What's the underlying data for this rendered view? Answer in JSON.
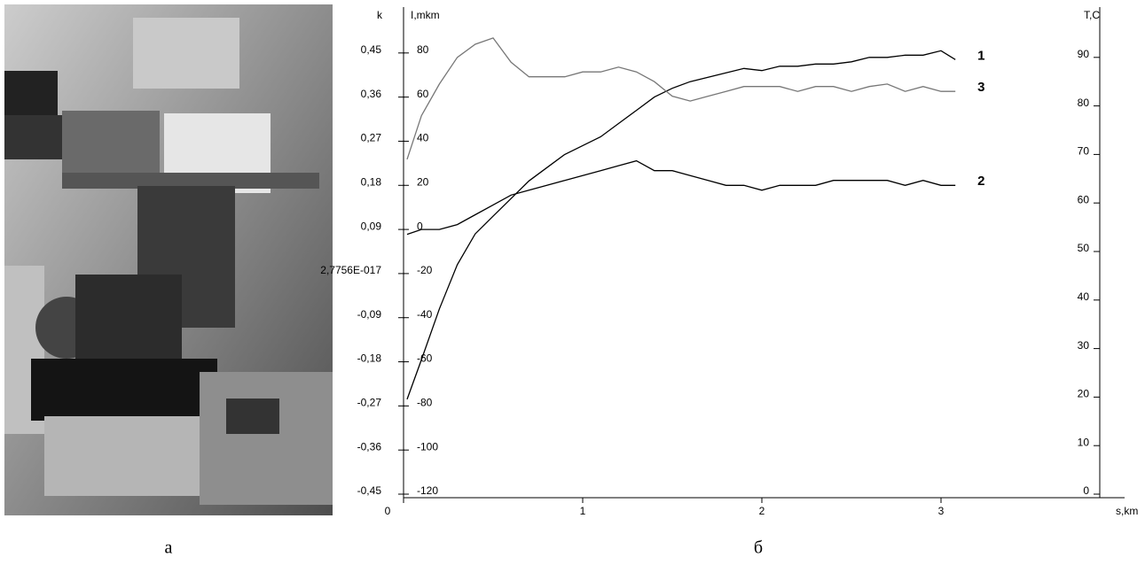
{
  "figure": {
    "captions": [
      "а",
      "б"
    ]
  },
  "chart_data": {
    "type": "line",
    "xlabel": "s,km",
    "ylabel": "k",
    "y2label": "I,mkm",
    "y3label": "T,C",
    "x": [
      0.02,
      0.1,
      0.2,
      0.3,
      0.4,
      0.5,
      0.6,
      0.7,
      0.8,
      0.9,
      1.0,
      1.1,
      1.2,
      1.3,
      1.4,
      1.5,
      1.6,
      1.7,
      1.8,
      1.9,
      2.0,
      2.1,
      2.2,
      2.3,
      2.4,
      2.5,
      2.6,
      2.7,
      2.8,
      2.9,
      3.0,
      3.08
    ],
    "xlim": [
      0,
      4
    ],
    "xticks": [
      0,
      1,
      2,
      3
    ],
    "ylim": [
      -0.45,
      0.54
    ],
    "yticks": [
      {
        "value": 0.45,
        "label": "0,45"
      },
      {
        "value": 0.36,
        "label": "0,36"
      },
      {
        "value": 0.27,
        "label": "0,27"
      },
      {
        "value": 0.18,
        "label": "0,18"
      },
      {
        "value": 0.09,
        "label": "0,09"
      },
      {
        "value": 2.7756e-17,
        "label": "2,7756E-017"
      },
      {
        "value": -0.09,
        "label": "-0,09"
      },
      {
        "value": -0.18,
        "label": "-0,18"
      },
      {
        "value": -0.27,
        "label": "-0,27"
      },
      {
        "value": -0.36,
        "label": "-0,36"
      },
      {
        "value": -0.45,
        "label": "-0,45"
      }
    ],
    "y2lim": [
      -120,
      100
    ],
    "y2ticks": [
      80,
      60,
      40,
      20,
      0,
      -20,
      -40,
      -60,
      -80,
      -100,
      -120
    ],
    "y3lim": [
      0,
      100
    ],
    "y3ticks": [
      90,
      80,
      70,
      60,
      50,
      40,
      30,
      20,
      10,
      0
    ],
    "series": [
      {
        "name": "1",
        "color": "#000000",
        "axis": "y2",
        "values": [
          -77,
          -59,
          -36,
          -16,
          -2,
          6,
          14,
          22,
          28,
          34,
          38,
          42,
          48,
          54,
          60,
          64,
          67,
          69,
          71,
          73,
          72,
          74,
          74,
          75,
          75,
          76,
          78,
          78,
          79,
          79,
          81,
          77
        ]
      },
      {
        "name": "2",
        "color": "#000000",
        "axis": "y",
        "values": [
          0.08,
          0.09,
          0.09,
          0.1,
          0.12,
          0.14,
          0.16,
          0.17,
          0.18,
          0.19,
          0.2,
          0.21,
          0.22,
          0.23,
          0.21,
          0.21,
          0.2,
          0.19,
          0.18,
          0.18,
          0.17,
          0.18,
          0.18,
          0.18,
          0.19,
          0.19,
          0.19,
          0.19,
          0.18,
          0.19,
          0.18,
          0.18
        ]
      },
      {
        "name": "3",
        "color": "#777777",
        "axis": "y3",
        "values": [
          69,
          78,
          84.5,
          90,
          92.7,
          94,
          89,
          86,
          86,
          86,
          87,
          87,
          88,
          87,
          85,
          82,
          81,
          82,
          83,
          84,
          84,
          84,
          83,
          84,
          84,
          83,
          84,
          84.5,
          83,
          84,
          83,
          83
        ]
      }
    ]
  }
}
